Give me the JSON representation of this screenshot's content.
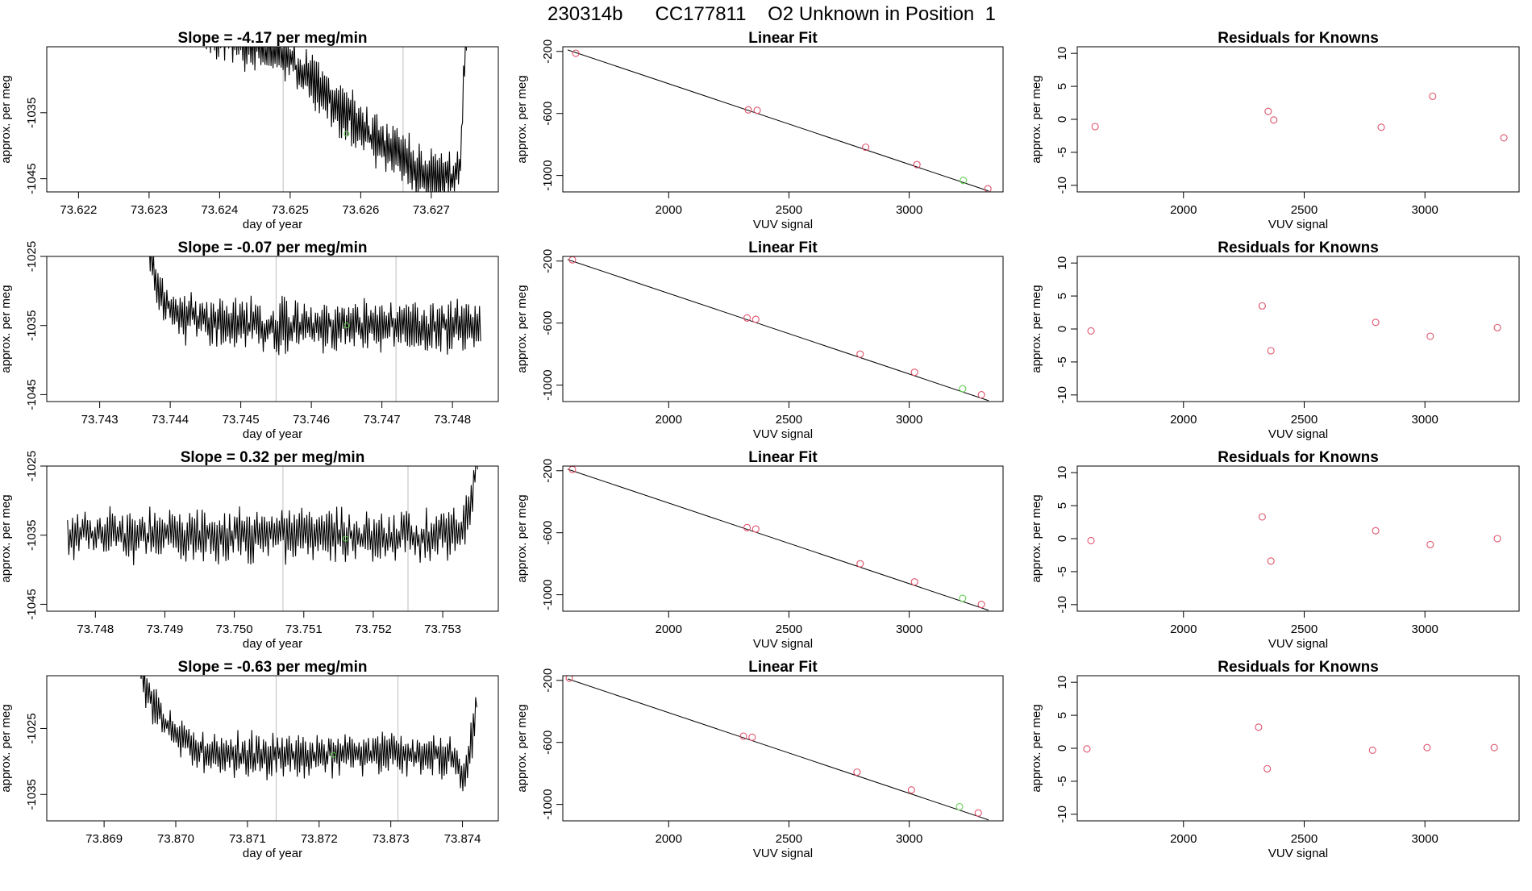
{
  "title": "230314b      CC177811    O2 Unknown in Position  1",
  "colors": {
    "line": "#000000",
    "point_red": "#DF536B",
    "point_green": "#61D04F",
    "vline": "#BEBEBE",
    "background": "#ffffff"
  },
  "chart_data": [
    {
      "type": "line",
      "row": 1,
      "col": 1,
      "title": "Slope =  -4.17  per meg/min",
      "xlabel": "day of year",
      "ylabel": "approx. per meg",
      "xlim": [
        73.62155,
        73.62795
      ],
      "ylim": [
        -1047.0,
        -1025.0
      ],
      "xticks": [
        73.622,
        73.623,
        73.624,
        73.625,
        73.626,
        73.627
      ],
      "xtick_labels": [
        "73.622",
        "73.623",
        "73.624",
        "73.625",
        "73.626",
        "73.627"
      ],
      "yticks": [
        -1035,
        -1045
      ],
      "ytick_labels": [
        "-1035",
        "-1045"
      ],
      "vlines": [
        73.6249,
        73.6266
      ],
      "green_point": {
        "x": 73.6258,
        "y": -1038.2
      },
      "series": {
        "x_start": 73.6238,
        "x_end": 73.6275,
        "n": 260,
        "trend": [
          [
            0.0,
            -1022
          ],
          [
            0.3,
            -1026
          ],
          [
            0.5,
            -1034
          ],
          [
            0.65,
            -1039
          ],
          [
            0.8,
            -1043
          ],
          [
            0.92,
            -1045
          ],
          [
            0.975,
            -1043.5
          ],
          [
            0.99,
            -1030
          ],
          [
            1.0,
            -1021
          ]
        ],
        "noise": 3.5,
        "seed": 11
      }
    },
    {
      "type": "scatter",
      "row": 1,
      "col": 2,
      "title": "Linear Fit",
      "xlabel": "VUV signal",
      "ylabel": "approx. per meg",
      "xlim": [
        1560,
        3390
      ],
      "ylim": [
        -1106,
        -170
      ],
      "xticks": [
        2000,
        2500,
        3000
      ],
      "xtick_labels": [
        "2000",
        "2500",
        "3000"
      ],
      "yticks": [
        -200,
        -600,
        -1000
      ],
      "ytick_labels": [
        "-200",
        "-600",
        "-1000"
      ],
      "fit_line": {
        "x": [
          1580,
          3330
        ],
        "y": [
          -190,
          -1100
        ]
      },
      "points": {
        "x": [
          1614,
          2331,
          2368,
          2819,
          3032,
          3327
        ],
        "y": [
          -212,
          -577,
          -580,
          -818,
          -930,
          -1086
        ]
      },
      "green_point": {
        "x": 3225,
        "y": -1032
      }
    },
    {
      "type": "scatter",
      "row": 1,
      "col": 3,
      "title": "Residuals for Knowns",
      "xlabel": "VUV signal",
      "ylabel": "approx. per meg",
      "xlim": [
        1560,
        3390
      ],
      "ylim": [
        -11,
        11
      ],
      "xticks": [
        2000,
        2500,
        3000
      ],
      "xtick_labels": [
        "2000",
        "2500",
        "3000"
      ],
      "yticks": [
        10,
        5,
        0,
        -5,
        -10
      ],
      "ytick_labels": [
        "10",
        "5",
        "0",
        "-5",
        "-10"
      ],
      "points": {
        "x": [
          1634,
          2351,
          2374,
          2819,
          3032,
          3327
        ],
        "y": [
          -1.1,
          1.2,
          -0.1,
          -1.2,
          3.5,
          -2.8
        ]
      }
    },
    {
      "type": "line",
      "row": 2,
      "col": 1,
      "title": "Slope =  -0.07  per meg/min",
      "xlabel": "day of year",
      "ylabel": "approx. per meg",
      "xlim": [
        73.74225,
        73.74865
      ],
      "ylim": [
        -1046.0,
        -1025.0
      ],
      "xticks": [
        73.743,
        73.744,
        73.745,
        73.746,
        73.747,
        73.748
      ],
      "xtick_labels": [
        "73.743",
        "73.744",
        "73.745",
        "73.746",
        "73.747",
        "73.748"
      ],
      "yticks": [
        -1025,
        -1035,
        -1045
      ],
      "ytick_labels": [
        "-1025",
        "-1035",
        "-1045"
      ],
      "vlines": [
        73.7455,
        73.7472
      ],
      "green_point": {
        "x": 73.7465,
        "y": -1035.0
      },
      "series": {
        "x_start": 73.7437,
        "x_end": 73.7484,
        "n": 300,
        "trend": [
          [
            0.0,
            -1024
          ],
          [
            0.02,
            -1029
          ],
          [
            0.07,
            -1033
          ],
          [
            0.2,
            -1035
          ],
          [
            1.0,
            -1035
          ]
        ],
        "noise": 3.2,
        "seed": 23
      }
    },
    {
      "type": "scatter",
      "row": 2,
      "col": 2,
      "title": "Linear Fit",
      "xlabel": "VUV signal",
      "ylabel": "approx. per meg",
      "xlim": [
        1560,
        3390
      ],
      "ylim": [
        -1106,
        -170
      ],
      "xticks": [
        2000,
        2500,
        3000
      ],
      "xtick_labels": [
        "2000",
        "2500",
        "3000"
      ],
      "yticks": [
        -200,
        -600,
        -1000
      ],
      "ytick_labels": [
        "-200",
        "-600",
        "-1000"
      ],
      "fit_line": {
        "x": [
          1580,
          3330
        ],
        "y": [
          -190,
          -1100
        ]
      },
      "points": {
        "x": [
          1600,
          2326,
          2362,
          2796,
          3022,
          3300
        ],
        "y": [
          -192,
          -567,
          -576,
          -800,
          -917,
          -1062
        ]
      },
      "green_point": {
        "x": 3222,
        "y": -1023
      }
    },
    {
      "type": "scatter",
      "row": 2,
      "col": 3,
      "title": "Residuals for Knowns",
      "xlabel": "VUV signal",
      "ylabel": "approx. per meg",
      "xlim": [
        1560,
        3390
      ],
      "ylim": [
        -11,
        11
      ],
      "xticks": [
        2000,
        2500,
        3000
      ],
      "xtick_labels": [
        "2000",
        "2500",
        "3000"
      ],
      "yticks": [
        10,
        5,
        0,
        -5,
        -10
      ],
      "ytick_labels": [
        "10",
        "5",
        "0",
        "-5",
        "-10"
      ],
      "points": {
        "x": [
          1617,
          2326,
          2362,
          2796,
          3022,
          3300
        ],
        "y": [
          -0.3,
          3.5,
          -3.3,
          1.0,
          -1.1,
          0.2
        ]
      }
    },
    {
      "type": "line",
      "row": 3,
      "col": 1,
      "title": "Slope =  0.32  per meg/min",
      "xlabel": "day of year",
      "ylabel": "approx. per meg",
      "xlim": [
        73.7473,
        73.7538
      ],
      "ylim": [
        -1046.0,
        -1025.0
      ],
      "xticks": [
        73.748,
        73.749,
        73.75,
        73.751,
        73.752,
        73.753
      ],
      "xtick_labels": [
        "73.748",
        "73.749",
        "73.750",
        "73.751",
        "73.752",
        "73.753"
      ],
      "yticks": [
        -1025,
        -1035,
        -1045
      ],
      "ytick_labels": [
        "-1025",
        "-1035",
        "-1045"
      ],
      "vlines": [
        73.7507,
        73.7525
      ],
      "green_point": {
        "x": 73.7516,
        "y": -1035.5
      },
      "series": {
        "x_start": 73.7476,
        "x_end": 73.7535,
        "n": 330,
        "trend": [
          [
            0.0,
            -1035
          ],
          [
            0.96,
            -1035
          ],
          [
            0.985,
            -1031
          ],
          [
            1.0,
            -1024
          ]
        ],
        "noise": 3.3,
        "seed": 37
      }
    },
    {
      "type": "scatter",
      "row": 3,
      "col": 2,
      "title": "Linear Fit",
      "xlabel": "VUV signal",
      "ylabel": "approx. per meg",
      "xlim": [
        1560,
        3390
      ],
      "ylim": [
        -1106,
        -170
      ],
      "xticks": [
        2000,
        2500,
        3000
      ],
      "xtick_labels": [
        "2000",
        "2500",
        "3000"
      ],
      "yticks": [
        -200,
        -600,
        -1000
      ],
      "ytick_labels": [
        "-200",
        "-600",
        "-1000"
      ],
      "fit_line": {
        "x": [
          1580,
          3330
        ],
        "y": [
          -190,
          -1100
        ]
      },
      "points": {
        "x": [
          1600,
          2326,
          2362,
          2796,
          3022,
          3300
        ],
        "y": [
          -192,
          -567,
          -576,
          -800,
          -917,
          -1062
        ]
      },
      "green_point": {
        "x": 3222,
        "y": -1023
      }
    },
    {
      "type": "scatter",
      "row": 3,
      "col": 3,
      "title": "Residuals for Knowns",
      "xlabel": "VUV signal",
      "ylabel": "approx. per meg",
      "xlim": [
        1560,
        3390
      ],
      "ylim": [
        -11,
        11
      ],
      "xticks": [
        2000,
        2500,
        3000
      ],
      "xtick_labels": [
        "2000",
        "2500",
        "3000"
      ],
      "yticks": [
        10,
        5,
        0,
        -5,
        -10
      ],
      "ytick_labels": [
        "10",
        "5",
        "0",
        "-5",
        "-10"
      ],
      "points": {
        "x": [
          1617,
          2326,
          2362,
          2796,
          3022,
          3300
        ],
        "y": [
          -0.3,
          3.3,
          -3.4,
          1.2,
          -0.9,
          0.0
        ]
      }
    },
    {
      "type": "line",
      "row": 4,
      "col": 1,
      "title": "Slope =  -0.63  per meg/min",
      "xlabel": "day of year",
      "ylabel": "approx. per meg",
      "xlim": [
        73.8682,
        73.8745
      ],
      "ylim": [
        -1039.0,
        -1017.0
      ],
      "xticks": [
        73.869,
        73.87,
        73.871,
        73.872,
        73.873,
        73.874
      ],
      "xtick_labels": [
        "73.869",
        "73.870",
        "73.871",
        "73.872",
        "73.873",
        "73.874"
      ],
      "yticks": [
        -1025,
        -1035
      ],
      "ytick_labels": [
        "-1025",
        "-1035"
      ],
      "vlines": [
        73.8714,
        73.8731
      ],
      "green_point": {
        "x": 73.8722,
        "y": -1029.0
      },
      "series": {
        "x_start": 73.8695,
        "x_end": 73.8742,
        "n": 290,
        "trend": [
          [
            0.0,
            -1016
          ],
          [
            0.03,
            -1020
          ],
          [
            0.1,
            -1026
          ],
          [
            0.2,
            -1029
          ],
          [
            0.94,
            -1029
          ],
          [
            0.96,
            -1033
          ],
          [
            0.985,
            -1027
          ],
          [
            1.0,
            -1021
          ]
        ],
        "noise": 2.8,
        "seed": 53
      }
    },
    {
      "type": "scatter",
      "row": 4,
      "col": 2,
      "title": "Linear Fit",
      "xlabel": "VUV signal",
      "ylabel": "approx. per meg",
      "xlim": [
        1560,
        3390
      ],
      "ylim": [
        -1106,
        -170
      ],
      "xticks": [
        2000,
        2500,
        3000
      ],
      "xtick_labels": [
        "2000",
        "2500",
        "3000"
      ],
      "yticks": [
        -200,
        -600,
        -1000
      ],
      "ytick_labels": [
        "-200",
        "-600",
        "-1000"
      ],
      "fit_line": {
        "x": [
          1580,
          3330
        ],
        "y": [
          -190,
          -1100
        ]
      },
      "points": {
        "x": [
          1587,
          2311,
          2347,
          2783,
          3009,
          3287
        ],
        "y": [
          -186,
          -560,
          -567,
          -792,
          -907,
          -1055
        ]
      },
      "green_point": {
        "x": 3209,
        "y": -1015
      }
    },
    {
      "type": "scatter",
      "row": 4,
      "col": 3,
      "title": "Residuals for Knowns",
      "xlabel": "VUV signal",
      "ylabel": "approx. per meg",
      "xlim": [
        1560,
        3390
      ],
      "ylim": [
        -11,
        11
      ],
      "xticks": [
        2000,
        2500,
        3000
      ],
      "xtick_labels": [
        "2000",
        "2500",
        "3000"
      ],
      "yticks": [
        10,
        5,
        0,
        -5,
        -10
      ],
      "ytick_labels": [
        "10",
        "5",
        "0",
        "-5",
        "-10"
      ],
      "points": {
        "x": [
          1600,
          2311,
          2347,
          2783,
          3009,
          3287
        ],
        "y": [
          -0.1,
          3.2,
          -3.1,
          -0.3,
          0.1,
          0.1
        ]
      }
    }
  ]
}
